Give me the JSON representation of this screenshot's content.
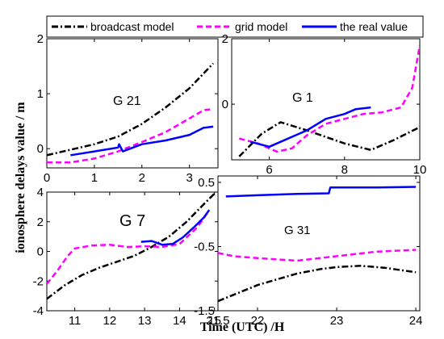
{
  "colors": {
    "broadcast": "#000000",
    "grid": "#ff00ff",
    "real": "#0000ff"
  },
  "legend": {
    "items": [
      {
        "key": "broadcast",
        "label": "broadcast model"
      },
      {
        "key": "grid",
        "label": "grid model"
      },
      {
        "key": "real",
        "label": "the real value"
      }
    ]
  },
  "axes": {
    "ylabel": "ionosphere delays value / m",
    "xlabel": "Time (UTC) /H"
  },
  "chart_data": [
    {
      "type": "line",
      "annotation": "G 21",
      "xlim": [
        0,
        3.6
      ],
      "ylim": [
        -0.35,
        2.0
      ],
      "xticks": [
        0,
        1,
        2,
        3
      ],
      "xtick_labels": [
        "0",
        "1",
        "2",
        "3"
      ],
      "yticks": [
        0,
        1,
        2
      ],
      "ytick_labels": [
        "0",
        "1",
        "2"
      ],
      "series": [
        {
          "key": "broadcast",
          "x": [
            0,
            0.5,
            1.0,
            1.5,
            2.0,
            2.5,
            3.0,
            3.5
          ],
          "y": [
            -0.12,
            -0.02,
            0.08,
            0.22,
            0.45,
            0.75,
            1.1,
            1.55
          ]
        },
        {
          "key": "grid",
          "x": [
            0,
            0.5,
            1.0,
            1.5,
            2.0,
            2.5,
            3.0,
            3.3,
            3.5
          ],
          "y": [
            -0.25,
            -0.25,
            -0.18,
            -0.05,
            0.12,
            0.3,
            0.55,
            0.7,
            0.72
          ]
        },
        {
          "key": "real",
          "x": [
            0.5,
            1.0,
            1.5,
            1.52,
            1.6,
            2.0,
            2.5,
            3.0,
            3.3,
            3.5
          ],
          "y": [
            -0.12,
            -0.05,
            0.02,
            0.08,
            -0.05,
            0.08,
            0.15,
            0.25,
            0.38,
            0.4
          ]
        }
      ]
    },
    {
      "type": "line",
      "annotation": "G 1",
      "xlim": [
        5,
        10
      ],
      "ylim": [
        -1.7,
        2.0
      ],
      "xticks": [
        6,
        8,
        10
      ],
      "xtick_labels": [
        "6",
        "8",
        "10"
      ],
      "yticks": [
        0,
        2
      ],
      "ytick_labels": [
        "0",
        "2"
      ],
      "series": [
        {
          "key": "broadcast",
          "x": [
            5.2,
            5.8,
            6.3,
            7.0,
            8.0,
            8.7,
            9.3,
            10.0
          ],
          "y": [
            -1.6,
            -0.9,
            -0.55,
            -0.8,
            -1.2,
            -1.4,
            -1.1,
            -0.7
          ]
        },
        {
          "key": "grid",
          "x": [
            5.2,
            5.7,
            6.2,
            6.6,
            7.0,
            7.5,
            8.0,
            8.5,
            9.0,
            9.5,
            9.8,
            10.0
          ],
          "y": [
            -1.05,
            -1.2,
            -1.45,
            -1.35,
            -0.95,
            -0.6,
            -0.45,
            -0.3,
            -0.25,
            -0.1,
            0.5,
            1.8
          ]
        },
        {
          "key": "real",
          "x": [
            5.5,
            6.0,
            6.4,
            7.0,
            7.5,
            8.0,
            8.3,
            8.7
          ],
          "y": [
            -1.15,
            -1.3,
            -1.1,
            -0.8,
            -0.45,
            -0.3,
            -0.15,
            -0.1
          ]
        }
      ]
    },
    {
      "type": "line",
      "annotation": "G 7",
      "xlim": [
        10.2,
        15.1
      ],
      "ylim": [
        -4.0,
        4.0
      ],
      "xticks": [
        11,
        12,
        13,
        14,
        15
      ],
      "xtick_labels": [
        "11",
        "12",
        "13",
        "14",
        "15"
      ],
      "yticks": [
        -4,
        -2,
        0,
        2,
        4
      ],
      "ytick_labels": [
        "-4",
        "-2",
        "0",
        "2",
        "4"
      ],
      "series": [
        {
          "key": "broadcast",
          "x": [
            10.2,
            10.7,
            11.2,
            11.7,
            12.2,
            12.7,
            13.2,
            13.7,
            14.2,
            14.7,
            15.0
          ],
          "y": [
            -3.2,
            -2.3,
            -1.6,
            -1.1,
            -0.7,
            -0.3,
            0.3,
            1.0,
            2.0,
            3.2,
            3.9
          ]
        },
        {
          "key": "grid",
          "x": [
            10.2,
            10.5,
            10.8,
            11.0,
            11.5,
            12.0,
            12.5,
            13.0,
            13.5,
            14.0,
            14.5,
            14.8
          ],
          "y": [
            -2.2,
            -1.3,
            -0.3,
            0.2,
            0.4,
            0.45,
            0.3,
            0.35,
            0.3,
            0.5,
            1.6,
            2.6
          ]
        },
        {
          "key": "real",
          "x": [
            12.9,
            13.2,
            13.5,
            13.8,
            14.1,
            14.4,
            14.7,
            14.85
          ],
          "y": [
            0.65,
            0.7,
            0.45,
            0.5,
            0.95,
            1.6,
            2.3,
            2.8
          ]
        }
      ]
    },
    {
      "type": "line",
      "annotation": "G 31",
      "xlim": [
        21.5,
        24.05
      ],
      "ylim": [
        -1.5,
        0.6
      ],
      "xticks": [
        21.5,
        22,
        23,
        24
      ],
      "xtick_labels": [
        "21.5",
        "22",
        "23",
        "24"
      ],
      "yticks": [
        -1.5,
        -0.5,
        0.5
      ],
      "ytick_labels": [
        "-1.5",
        "-0.5",
        "0.5"
      ],
      "series": [
        {
          "key": "broadcast",
          "x": [
            21.5,
            22.0,
            22.5,
            22.8,
            23.0,
            23.3,
            23.6,
            24.0
          ],
          "y": [
            -1.35,
            -1.1,
            -0.92,
            -0.85,
            -0.82,
            -0.8,
            -0.83,
            -0.9
          ]
        },
        {
          "key": "grid",
          "x": [
            21.5,
            21.7,
            22.0,
            22.5,
            23.0,
            23.5,
            24.0
          ],
          "y": [
            -0.6,
            -0.65,
            -0.68,
            -0.72,
            -0.65,
            -0.58,
            -0.55
          ]
        },
        {
          "key": "real",
          "x": [
            21.6,
            22.0,
            22.5,
            22.9,
            22.92,
            23.5,
            24.0
          ],
          "y": [
            0.28,
            0.3,
            0.32,
            0.33,
            0.42,
            0.42,
            0.43
          ]
        }
      ]
    }
  ]
}
